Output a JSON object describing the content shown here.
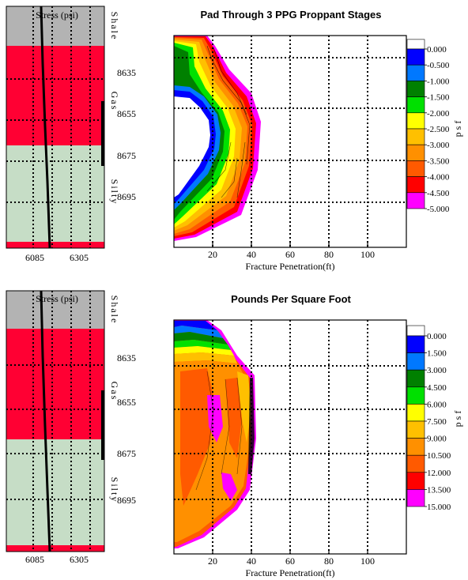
{
  "chart_data": [
    {
      "type": "heatmap",
      "title": "Pad Through 3 PPG Proppant Stages",
      "xlabel": "Fracture Penetration(ft)",
      "x_ticks": [
        "20",
        "40",
        "60",
        "80",
        "100"
      ],
      "x_tick_values": [
        20,
        40,
        60,
        80,
        100
      ],
      "xlim": [
        0,
        120
      ],
      "colorbar": {
        "unit": "p s f",
        "labels": [
          "0.000",
          "-0.500",
          "-1.000",
          "-1.500",
          "-2.000",
          "-2.500",
          "-3.000",
          "-3.500",
          "-4.000",
          "-4.500",
          "-5.000"
        ],
        "colors": [
          "#ffffff",
          "#0000ff",
          "#0078ff",
          "#008000",
          "#00e000",
          "#ffff00",
          "#ffc000",
          "#ff9000",
          "#ff5a00",
          "#ff0000",
          "#ff00ff"
        ]
      },
      "log": {
        "header": "Stress (psi)",
        "depths": [
          "8635",
          "8655",
          "8675",
          "8695"
        ],
        "stress_ticks": [
          "6085",
          "6305"
        ],
        "zones": [
          {
            "name": "Shale",
            "color": "#b3b3b3"
          },
          {
            "name": "Gas",
            "color": "#ff0033"
          },
          {
            "name": "Silty",
            "color": "#c6ddc6"
          }
        ]
      }
    },
    {
      "type": "heatmap",
      "title": "Pounds Per Square Foot",
      "xlabel": "Fracture Penetration(ft)",
      "x_ticks": [
        "20",
        "40",
        "60",
        "80",
        "100"
      ],
      "x_tick_values": [
        20,
        40,
        60,
        80,
        100
      ],
      "xlim": [
        0,
        120
      ],
      "colorbar": {
        "unit": "p s f",
        "labels": [
          "0.000",
          "1.500",
          "3.000",
          "4.500",
          "6.000",
          "7.500",
          "9.000",
          "10.500",
          "12.000",
          "13.500",
          "15.000"
        ],
        "colors": [
          "#ffffff",
          "#0000ff",
          "#0078ff",
          "#008000",
          "#00e000",
          "#ffff00",
          "#ffc000",
          "#ff9000",
          "#ff5a00",
          "#ff0000",
          "#ff00ff"
        ]
      },
      "log": {
        "header": "Stress (psi)",
        "depths": [
          "8635",
          "8655",
          "8675",
          "8695"
        ],
        "stress_ticks": [
          "6085",
          "6305"
        ],
        "zones": [
          {
            "name": "Shale",
            "color": "#b3b3b3"
          },
          {
            "name": "Gas",
            "color": "#ff0033"
          },
          {
            "name": "Silty",
            "color": "#c6ddc6"
          }
        ]
      }
    }
  ]
}
